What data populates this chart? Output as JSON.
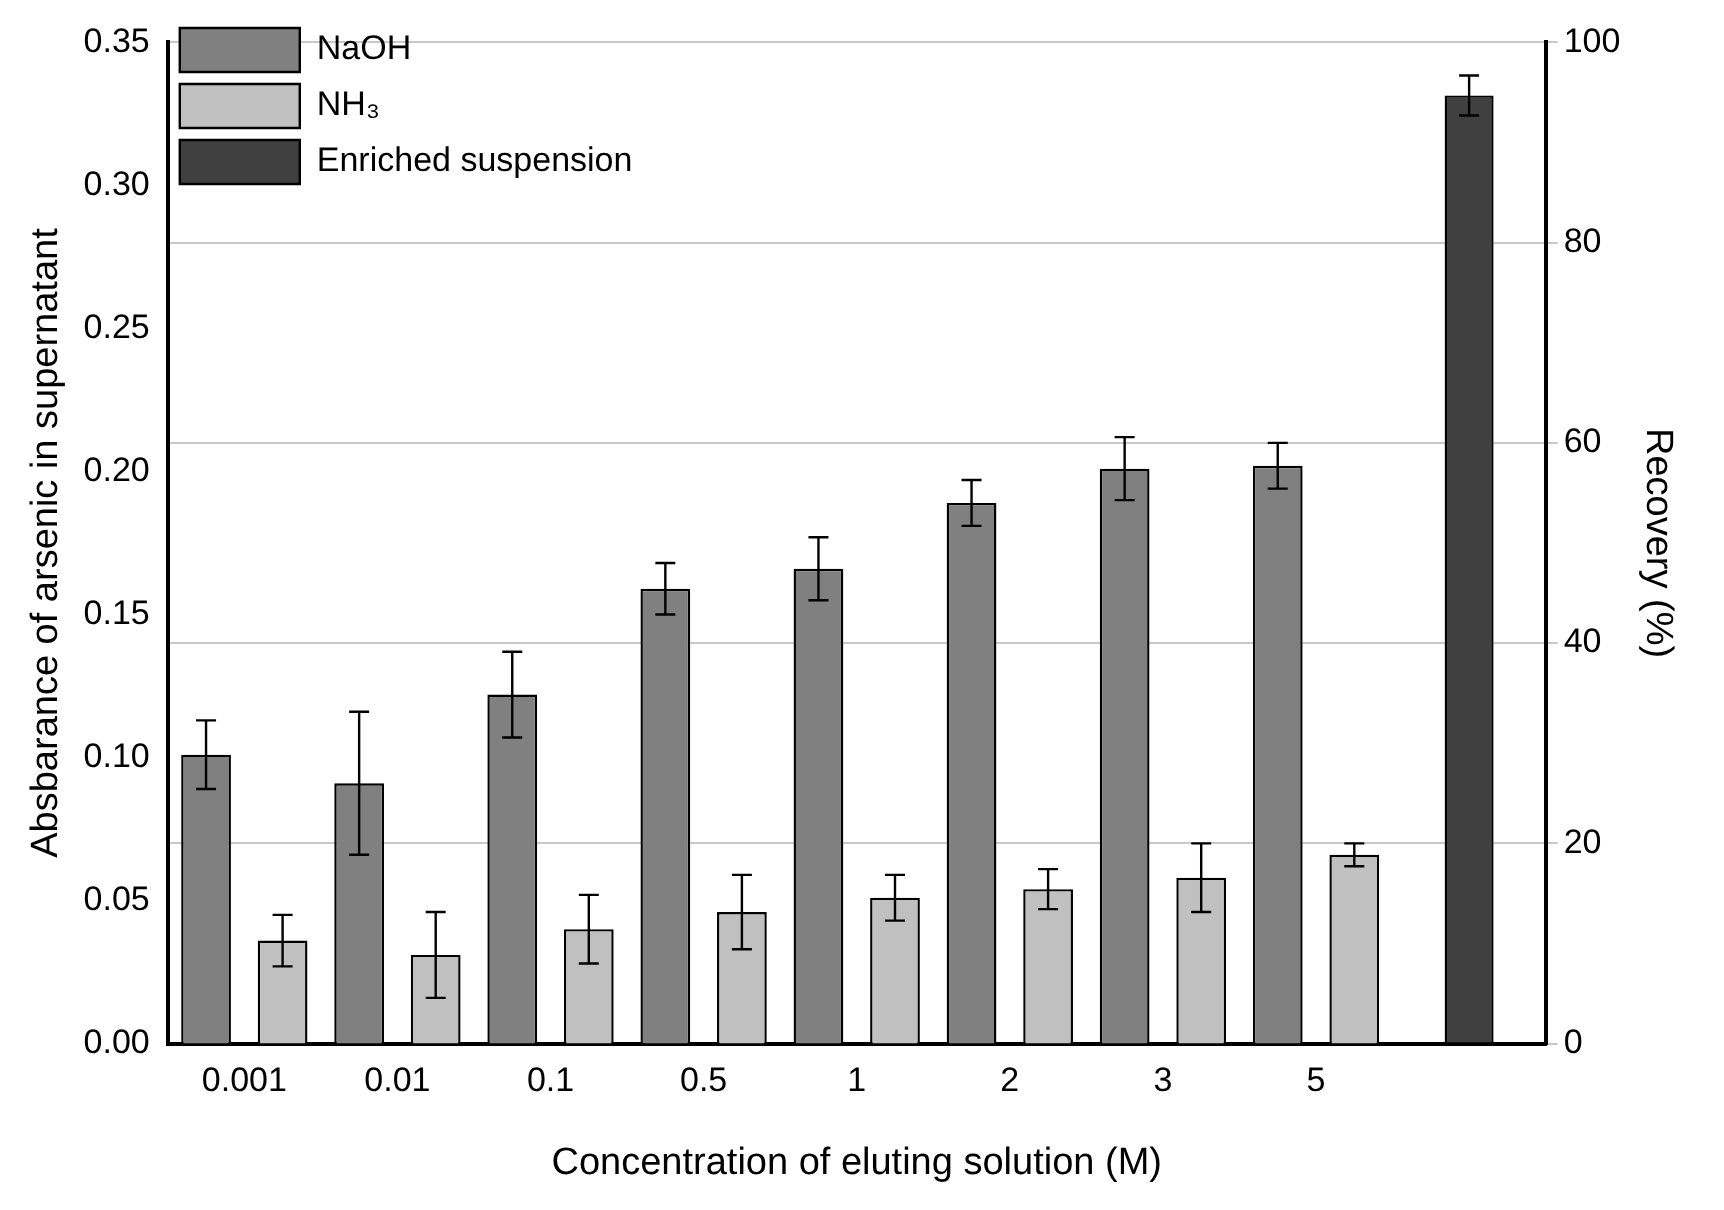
{
  "chart_data": {
    "type": "bar",
    "xlabel": "Concentration of eluting solution (M)",
    "ylabel": "Absbarance of arsenic in supernatant",
    "y2label": "Recovery (%)",
    "categories": [
      "0.001",
      "0.01",
      "0.1",
      "0.5",
      "1",
      "2",
      "3",
      "5",
      null
    ],
    "series": [
      {
        "name": "NaOH",
        "color": "#808080",
        "values": [
          0.101,
          0.091,
          0.122,
          0.159,
          0.166,
          0.189,
          0.201,
          0.202,
          null
        ],
        "errors": [
          0.012,
          0.025,
          0.015,
          0.009,
          0.011,
          0.008,
          0.011,
          0.008,
          null
        ]
      },
      {
        "name": "NH₃",
        "color": "#c0c0c0",
        "values": [
          0.036,
          0.031,
          0.04,
          0.046,
          0.051,
          0.054,
          0.058,
          0.066,
          null
        ],
        "errors": [
          0.009,
          0.015,
          0.012,
          0.013,
          0.008,
          0.007,
          0.012,
          0.004,
          null
        ]
      },
      {
        "name": "Enriched suspension",
        "color": "#404040",
        "axis": "y2",
        "values": [
          null,
          null,
          null,
          null,
          null,
          null,
          null,
          null,
          94.7
        ],
        "errors": [
          null,
          null,
          null,
          null,
          null,
          null,
          null,
          null,
          2
        ]
      }
    ],
    "ylim": [
      0,
      0.35
    ],
    "yticks": [
      {
        "value": 0,
        "label": "0.00"
      },
      0.05,
      {
        "value": 0.1,
        "label": "0.10"
      },
      0.15,
      {
        "value": 0.2,
        "label": "0.20"
      },
      0.25,
      {
        "value": 0.3,
        "label": "0.30"
      },
      0.35
    ],
    "y2lim": [
      0,
      100
    ],
    "y2ticks": [
      0,
      20,
      40,
      60,
      80,
      100
    ],
    "grid": "y",
    "legend": "top left"
  }
}
